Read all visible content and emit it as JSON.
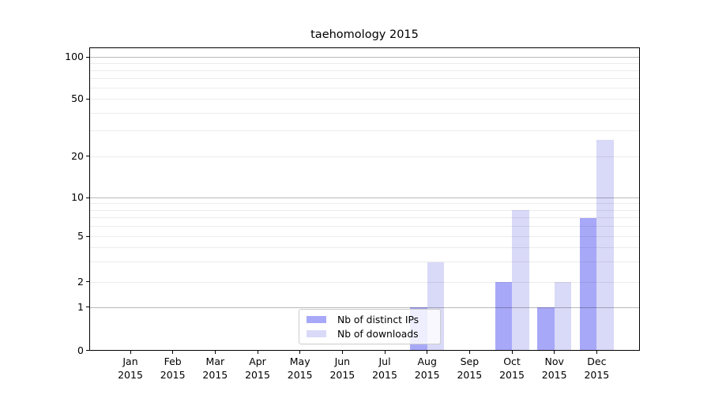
{
  "chart_data": {
    "type": "bar",
    "title": "taehomology 2015",
    "categories": [
      "Jan",
      "Feb",
      "Mar",
      "Apr",
      "May",
      "Jun",
      "Jul",
      "Aug",
      "Sep",
      "Oct",
      "Nov",
      "Dec"
    ],
    "x_year": "2015",
    "series": [
      {
        "name": "Nb of distinct IPs",
        "color": "#a8a8f8",
        "values": [
          0,
          0,
          0,
          0,
          0,
          0,
          0,
          1,
          0,
          2,
          1,
          7
        ]
      },
      {
        "name": "Nb of downloads",
        "color": "#d9d9f8",
        "values": [
          0,
          0,
          0,
          0,
          0,
          0,
          0,
          3,
          0,
          8,
          2,
          26
        ]
      }
    ],
    "xlabel": "",
    "ylabel": "",
    "yscale": "symlog",
    "ylim": [
      0,
      100
    ],
    "yticks": [
      0,
      1,
      2,
      5,
      10,
      20,
      50,
      100
    ],
    "grid_minor": [
      2,
      3,
      4,
      5,
      6,
      7,
      8,
      9,
      20,
      30,
      40,
      50,
      60,
      70,
      80,
      90
    ],
    "grid_major": [
      1,
      10,
      100
    ],
    "grid": "horizontal",
    "legend_position": "lower center"
  }
}
